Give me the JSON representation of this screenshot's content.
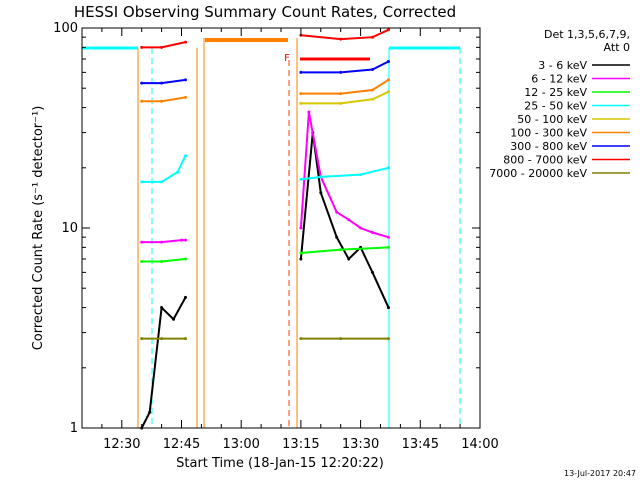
{
  "chart_data": {
    "type": "line",
    "title": "HESSI Observing Summary Count Rates, Corrected",
    "xlabel": "Start Time (18-Jan-15 12:20:22)",
    "ylabel": "Corrected Count Rate (s⁻¹ detector⁻¹)",
    "y_scale": "log",
    "xlim": [
      "12:20",
      "14:00"
    ],
    "ylim": [
      1,
      100
    ],
    "x_ticks": [
      "12:30",
      "12:45",
      "13:00",
      "13:15",
      "13:30",
      "13:45",
      "14:00"
    ],
    "y_ticks": [
      "1",
      "10",
      "100"
    ],
    "legend_header": [
      "Det 1,3,5,6,7,9,",
      "Att 0"
    ],
    "legend_position": "right",
    "flag_label": "F",
    "footer_date": "13-Jul-2017 20:47",
    "series": [
      {
        "name": "3 - 6 keV",
        "color": "#000000",
        "x": [
          "12:35",
          "12:37",
          "12:40",
          "12:43",
          "12:46",
          "13:15",
          "13:18",
          "13:20",
          "13:24",
          "13:27",
          "13:30",
          "13:33",
          "13:37"
        ],
        "values": [
          1.0,
          1.2,
          4.0,
          3.5,
          4.5,
          7.0,
          30,
          15,
          9,
          7,
          8,
          6,
          4
        ]
      },
      {
        "name": "6 - 12 keV",
        "color": "#ff00ff",
        "x": [
          "12:35",
          "12:40",
          "12:45",
          "12:46",
          "13:15",
          "13:17",
          "13:20",
          "13:24",
          "13:27",
          "13:30",
          "13:33",
          "13:37"
        ],
        "values": [
          8.5,
          8.5,
          8.7,
          8.7,
          10,
          38,
          18,
          12,
          11,
          10,
          9.5,
          9
        ]
      },
      {
        "name": "12 - 25 keV",
        "color": "#00ff00",
        "x": [
          "12:35",
          "12:40",
          "12:46",
          "13:15",
          "13:25",
          "13:37"
        ],
        "values": [
          6.8,
          6.8,
          7.0,
          7.5,
          7.8,
          8.0
        ]
      },
      {
        "name": "25 - 50 keV",
        "color": "#00ffff",
        "x": [
          "12:35",
          "12:40",
          "12:44",
          "12:46",
          "13:15",
          "13:20",
          "13:30",
          "13:37"
        ],
        "values": [
          17,
          17,
          19,
          23,
          17.5,
          18,
          18.5,
          20
        ]
      },
      {
        "name": "50 - 100 keV",
        "color": "#d8c800",
        "x": [
          "13:15",
          "13:25",
          "13:33",
          "13:37"
        ],
        "values": [
          42,
          42,
          44,
          48
        ]
      },
      {
        "name": "100 - 300 keV",
        "color": "#ff8000",
        "x": [
          "12:35",
          "12:40",
          "12:46",
          "13:15",
          "13:25",
          "13:33",
          "13:37"
        ],
        "values": [
          43,
          43,
          45,
          47,
          47,
          49,
          55
        ]
      },
      {
        "name": "300 - 800 keV",
        "color": "#0000ff",
        "x": [
          "12:35",
          "12:40",
          "12:46",
          "13:15",
          "13:25",
          "13:33",
          "13:37"
        ],
        "values": [
          53,
          53,
          55,
          60,
          60,
          62,
          68
        ]
      },
      {
        "name": "800 - 7000 keV",
        "color": "#ff0000",
        "x": [
          "12:35",
          "12:40",
          "12:46",
          "13:15",
          "13:25",
          "13:33",
          "13:37"
        ],
        "values": [
          80,
          80,
          85,
          92,
          88,
          90,
          98
        ]
      },
      {
        "name": "7000 - 20000 keV",
        "color": "#808000",
        "x": [
          "12:35",
          "12:40",
          "12:46",
          "13:15",
          "13:25",
          "13:37"
        ],
        "values": [
          2.8,
          2.8,
          2.8,
          2.8,
          2.8,
          2.8
        ]
      }
    ]
  }
}
